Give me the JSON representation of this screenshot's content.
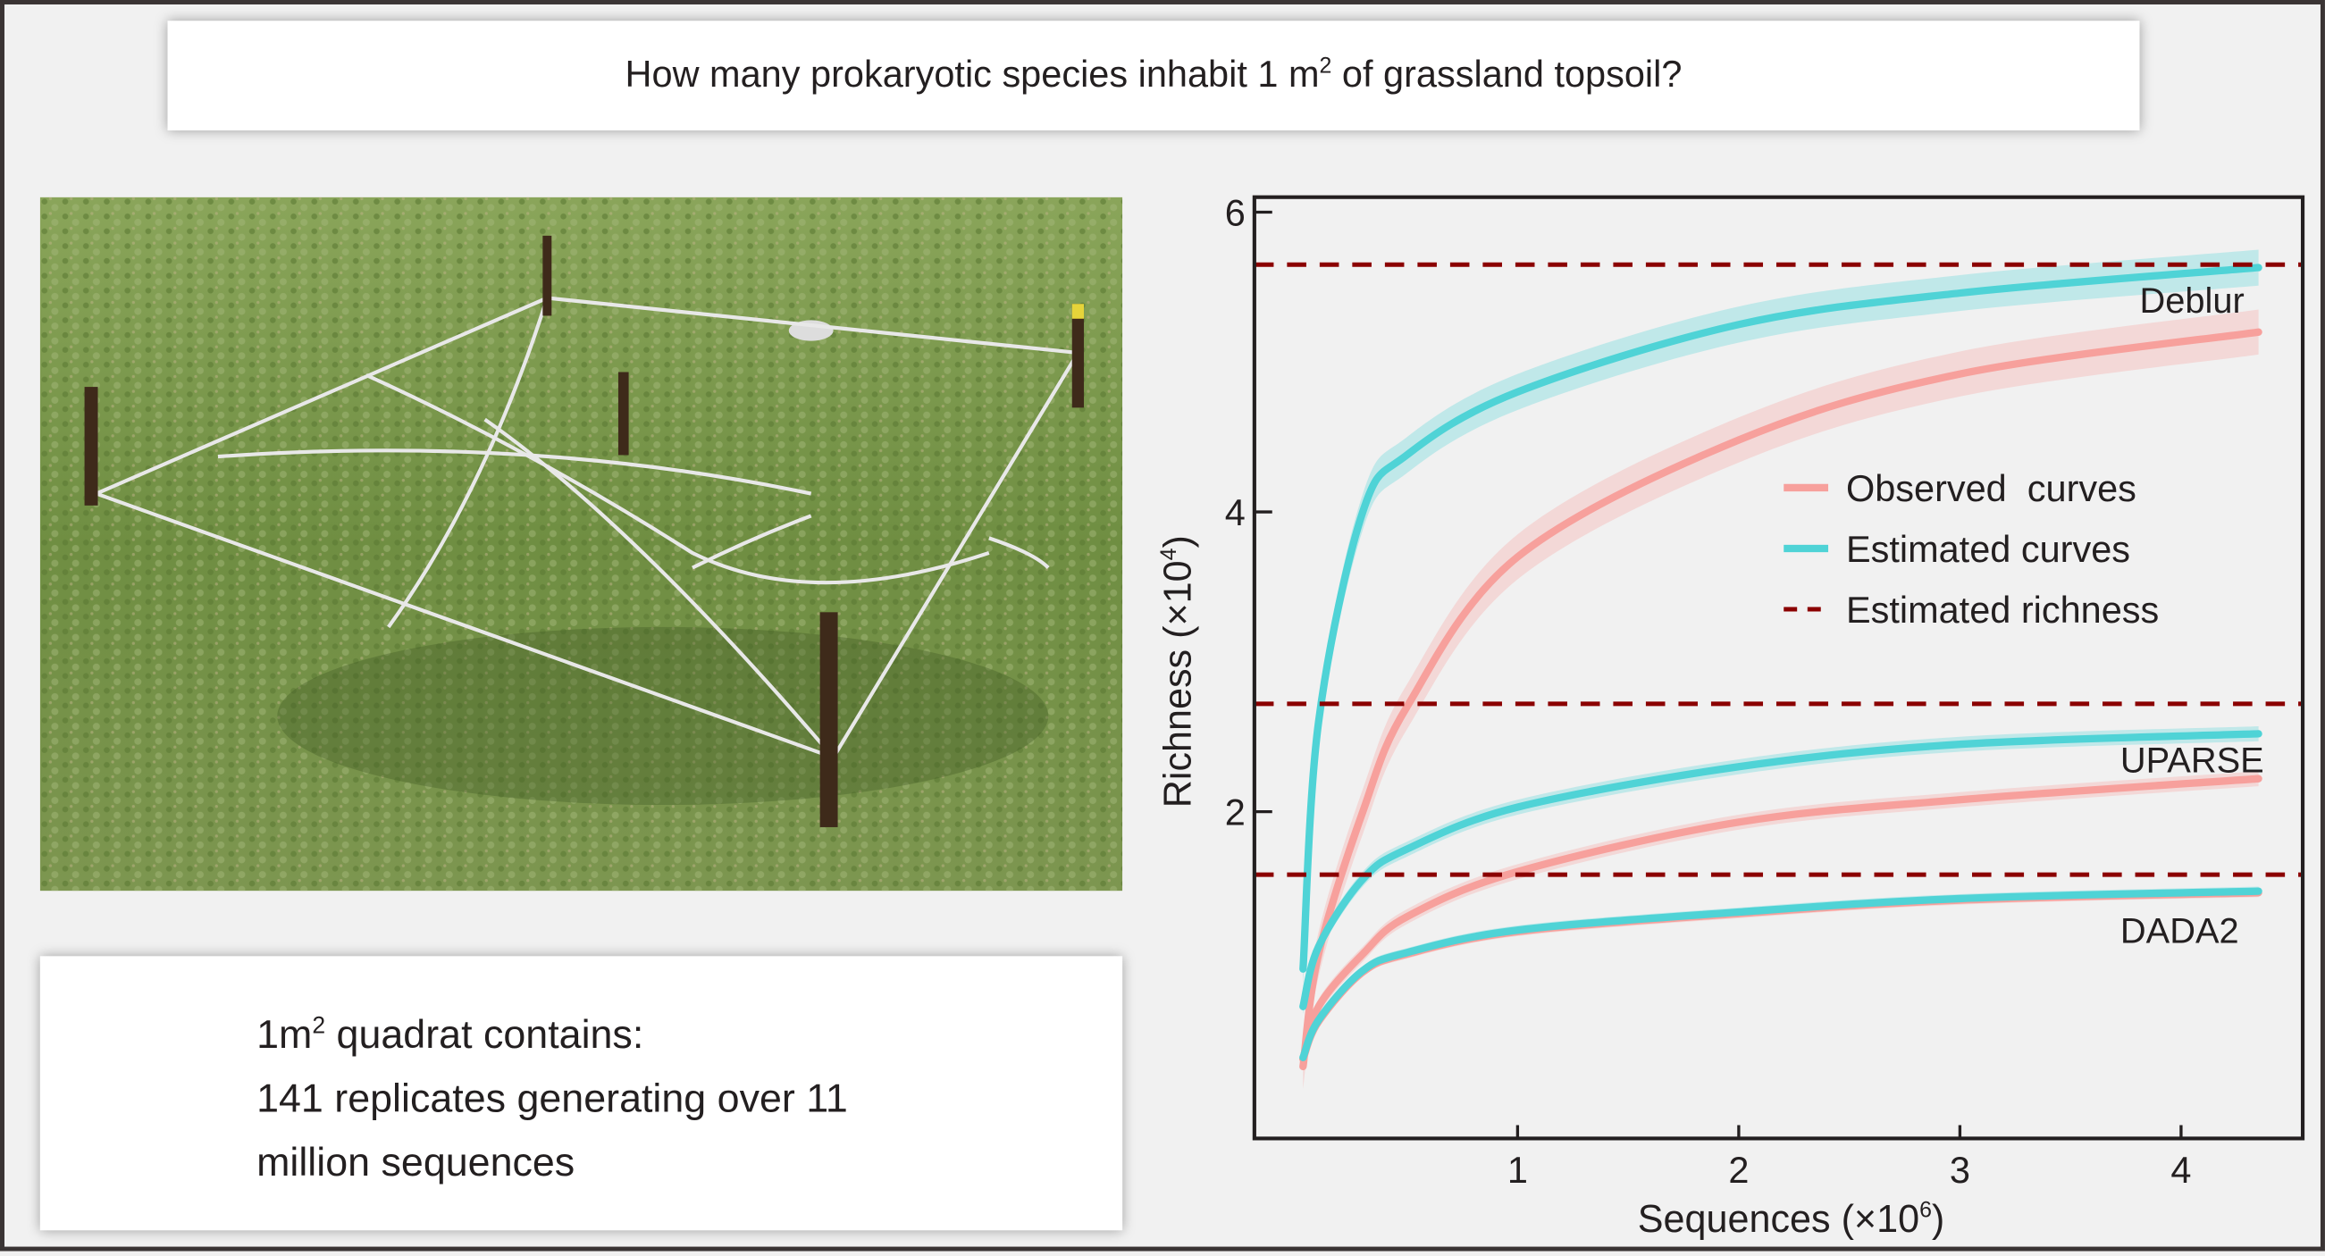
{
  "title": {
    "main": "How many prokaryotic species inhabit 1 m",
    "sup": "2",
    "rest": " of grassland topsoil?"
  },
  "info_box": {
    "line1_a": "1m",
    "line1_sup": "2",
    "line1_b": " quadrat contains:",
    "line2": "141 replicates generating over 11",
    "line3": "million sequences"
  },
  "photo": {
    "description_icon": "quadrat-photo"
  },
  "colors": {
    "observed": "#f7a09c",
    "estimated": "#4fd3d6",
    "richness": "#8b0000",
    "axis": "#231f20"
  },
  "chart_data": {
    "type": "line",
    "xlabel": "Sequences (×10",
    "xlabel_sup": "6",
    "ylabel": "Richness (×10",
    "ylabel_sup": "4",
    "xlim": [
      -0.19,
      4.55
    ],
    "ylim": [
      -0.18,
      6.1
    ],
    "xticks": [
      1,
      2,
      3,
      4
    ],
    "yticks": [
      2,
      4,
      6
    ],
    "legend": {
      "position": "center-right",
      "entries": [
        "Observed  curves",
        "Estimated curves",
        "Estimated richness"
      ]
    },
    "x": [
      0.03,
      0.1,
      0.3,
      0.5,
      1,
      2,
      3,
      4.35
    ],
    "groups": [
      {
        "name": "Deblur",
        "estimated_richness": 5.65,
        "estimated": [
          0.95,
          2.6,
          4.0,
          4.38,
          4.8,
          5.25,
          5.46,
          5.63
        ],
        "estimated_band": 0.12,
        "observed": [
          0.3,
          1.05,
          2.0,
          2.7,
          3.7,
          4.48,
          4.92,
          5.2
        ],
        "observed_band": 0.15
      },
      {
        "name": "UPARSE",
        "estimated_richness": 2.72,
        "estimated": [
          0.7,
          1.1,
          1.55,
          1.75,
          2.03,
          2.3,
          2.45,
          2.52
        ],
        "estimated_band": 0.05,
        "observed": [
          0.35,
          0.7,
          1.05,
          1.3,
          1.6,
          1.93,
          2.08,
          2.22
        ],
        "observed_band": 0.05
      },
      {
        "name": "DADA2",
        "estimated_richness": 1.58,
        "estimated": [
          0.36,
          0.61,
          0.94,
          1.06,
          1.21,
          1.33,
          1.42,
          1.47
        ],
        "estimated_band": 0.03,
        "observed": [
          0.35,
          0.6,
          0.93,
          1.05,
          1.2,
          1.32,
          1.41,
          1.46
        ],
        "observed_band": 0.03
      }
    ]
  }
}
